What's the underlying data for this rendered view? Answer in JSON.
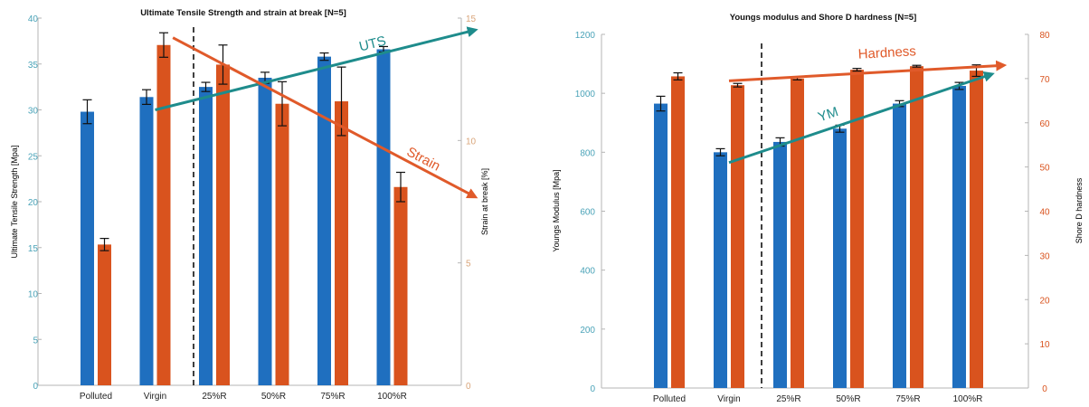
{
  "colors": {
    "blue": "#1f6fbf",
    "orange": "#d9531e",
    "teal": "#1e8c8c",
    "left_axis_text": "#4aa3b8",
    "right_axis_text": "#d9a57a",
    "arrow_orange": "#e05a2a"
  },
  "chart_data": [
    {
      "type": "bar",
      "title": "Ultimate  Tensile  Strength and strain at break [N=5]",
      "categories": [
        "Polluted",
        "Virgin",
        "25%R",
        "50%R",
        "75%R",
        "100%R"
      ],
      "ylabel_left": "Ultimate Tensile Strength [Mpa]",
      "ylabel_right": "Strain at break [%]",
      "ylim_left": [
        0,
        40
      ],
      "ylim_right": [
        0,
        15
      ],
      "yticks_left": [
        "0",
        "5",
        "10",
        "15",
        "20",
        "25",
        "30",
        "35",
        "40"
      ],
      "yticks_right": [
        "0",
        "5",
        "10",
        "15"
      ],
      "series": [
        {
          "axis": "left",
          "color": "#1f6fbf",
          "values": [
            29.8,
            31.4,
            32.5,
            33.5,
            35.8,
            36.6
          ],
          "errors": [
            1.3,
            0.8,
            0.5,
            0.6,
            0.4,
            0.3
          ]
        },
        {
          "axis": "right",
          "color": "#d9531e",
          "values": [
            5.75,
            13.9,
            13.1,
            11.5,
            11.6,
            8.1
          ],
          "errors": [
            0.25,
            0.5,
            0.8,
            0.9,
            1.4,
            0.6
          ]
        }
      ],
      "divider_after_index": 1,
      "annotations": [
        {
          "text": "UTS",
          "color": "#1e8c8c",
          "from": {
            "cat": 1,
            "axis": "left",
            "y": 30
          },
          "to": {
            "cat": 6.4,
            "axis": "left",
            "y": 38.7
          }
        },
        {
          "text": "Strain",
          "color": "#e05a2a",
          "from": {
            "cat": 1.3,
            "axis": "right",
            "y": 14.2
          },
          "to": {
            "cat": 6.4,
            "axis": "right",
            "y": 7.7
          }
        }
      ]
    },
    {
      "type": "bar",
      "title": "Youngs modulus  and  Shore D hardness [N=5]",
      "categories": [
        "Polluted",
        "Virgin",
        "25%R",
        "50%R",
        "75%R",
        "100%R"
      ],
      "ylabel_left": "Youngs Modulus [Mpa]",
      "ylabel_right": "Shore D hardness",
      "ylim_left": [
        0,
        1200
      ],
      "ylim_right": [
        0,
        80
      ],
      "yticks_left": [
        "0",
        "200",
        "400",
        "600",
        "800",
        "1000",
        "1200"
      ],
      "yticks_right": [
        "0",
        "10",
        "20",
        "30",
        "40",
        "50",
        "60",
        "70",
        "80"
      ],
      "series": [
        {
          "axis": "left",
          "color": "#1f6fbf",
          "values": [
            965,
            800,
            835,
            880,
            965,
            1025
          ],
          "errors": [
            25,
            12,
            14,
            12,
            10,
            12
          ]
        },
        {
          "axis": "right",
          "color": "#d9531e",
          "values": [
            70.5,
            68.5,
            70,
            72,
            72.8,
            71.8
          ],
          "errors": [
            0.8,
            0.4,
            0.3,
            0.3,
            0.2,
            1.3
          ]
        }
      ],
      "divider_after_index": 1,
      "annotations": [
        {
          "text": "YM",
          "color": "#1e8c8c",
          "from": {
            "cat": 1,
            "axis": "left",
            "y": 765
          },
          "to": {
            "cat": 5.4,
            "axis": "left",
            "y": 1065
          }
        },
        {
          "text": "Hardness",
          "color": "#e05a2a",
          "from": {
            "cat": 1,
            "axis": "right",
            "y": 69.5
          },
          "to": {
            "cat": 5.6,
            "axis": "right",
            "y": 73
          }
        }
      ]
    }
  ]
}
